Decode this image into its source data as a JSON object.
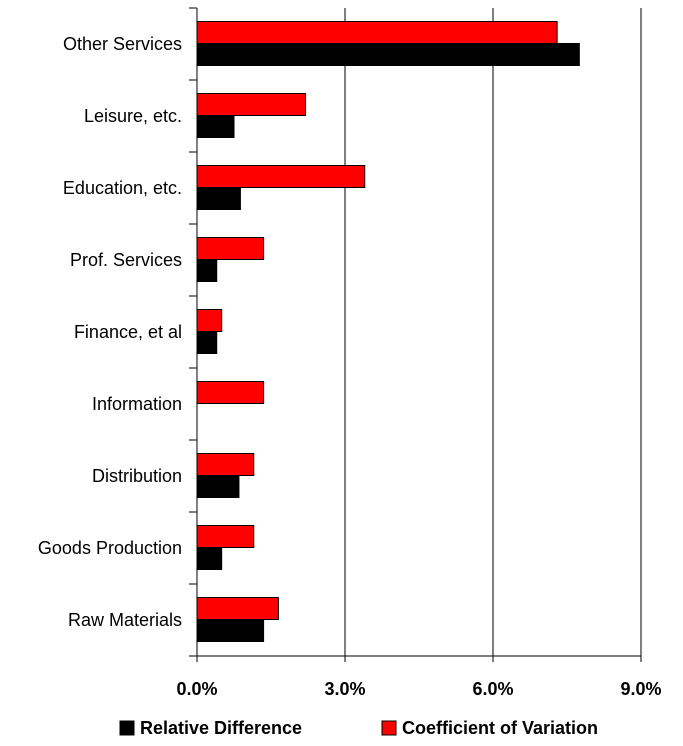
{
  "chart_data": {
    "type": "bar",
    "orientation": "horizontal",
    "categories": [
      "Other Services",
      "Leisure, etc.",
      "Education, etc.",
      "Prof. Services",
      "Finance, et al",
      "Information",
      "Distribution",
      "Goods Production",
      "Raw Materials"
    ],
    "series": [
      {
        "name": "Coefficient of Variation",
        "color": "#ff0000",
        "values": [
          7.3,
          2.2,
          3.4,
          1.35,
          0.5,
          1.35,
          1.15,
          1.15,
          1.65
        ]
      },
      {
        "name": "Relative Difference",
        "color": "#000000",
        "values": [
          7.75,
          0.75,
          0.88,
          0.4,
          0.4,
          0.0,
          0.85,
          0.5,
          1.35
        ]
      }
    ],
    "xlim": [
      0,
      9
    ],
    "x_ticks": [
      0,
      3,
      6,
      9
    ],
    "x_tick_labels": [
      "0.0%",
      "3.0%",
      "6.0%",
      "9.0%"
    ],
    "grid": "vertical gridlines at major ticks",
    "legend": {
      "placement": "bottom",
      "entries": [
        "Relative Difference",
        "Coefficient of Variation"
      ]
    },
    "title": "",
    "xlabel": "",
    "ylabel": ""
  }
}
